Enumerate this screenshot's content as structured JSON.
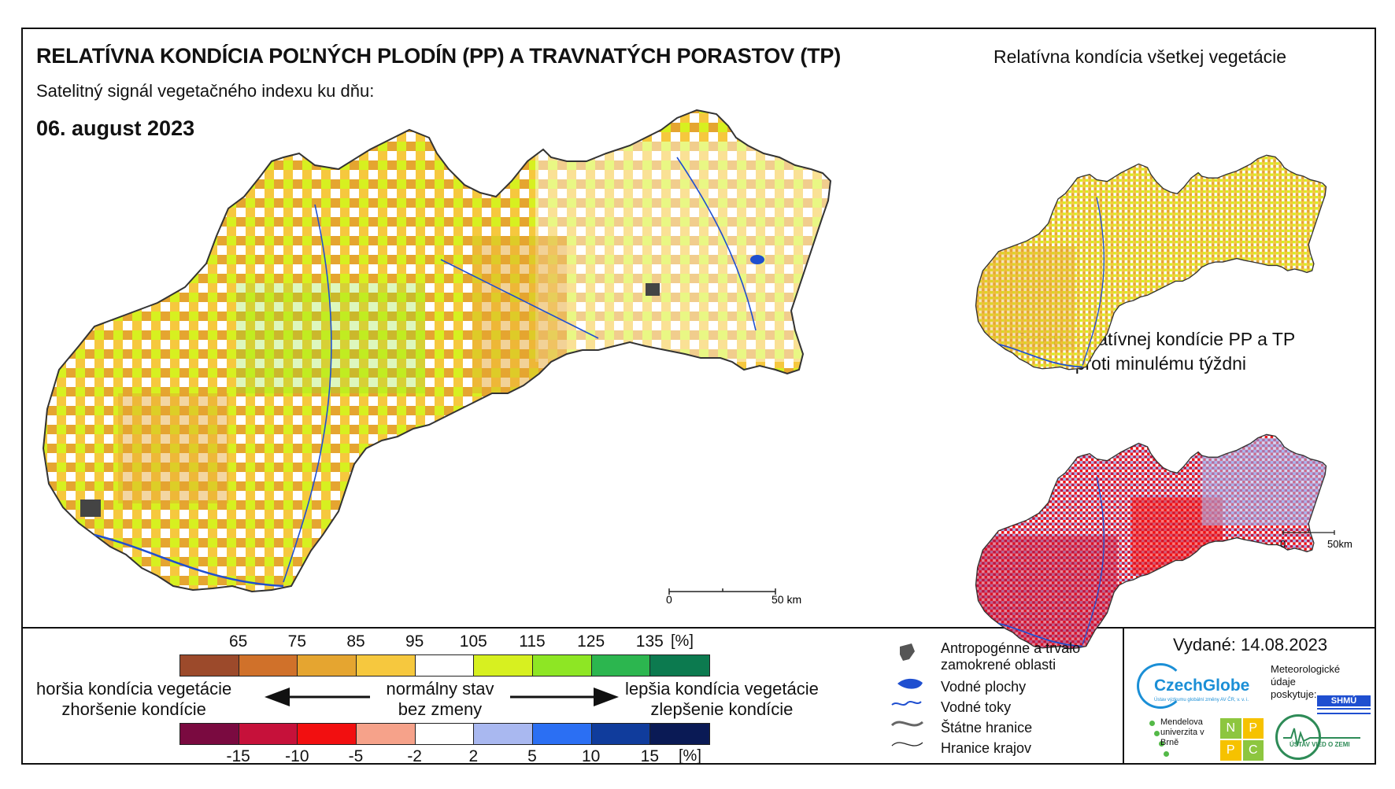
{
  "header": {
    "title": "RELATÍVNA KONDÍCIA POĽNÝCH PLODÍN (PP) A TRAVNATÝCH PORASTOV (TP)",
    "subtitle": "Satelitný signál vegetačného indexu ku dňu:",
    "date": "06. august 2023"
  },
  "side_maps": {
    "vegetation_title": "Relatívna kondícia všetkej vegetácie",
    "change_title": "Zmena relatívnej kondície PP a TP oproti minulému týždni",
    "scale_start": "0",
    "scale_end": "50km"
  },
  "main_map": {
    "scale_start": "0",
    "scale_end": "50 km"
  },
  "legend": {
    "condition_ticks": [
      "65",
      "75",
      "85",
      "95",
      "105",
      "115",
      "125",
      "135"
    ],
    "condition_unit": "[%]",
    "condition_colors": [
      "#9c4a2b",
      "#d0712a",
      "#e5a530",
      "#f6c83e",
      "#ffffff",
      "#d7f020",
      "#8ee624",
      "#2cb64f",
      "#0c7a4f"
    ],
    "change_ticks": [
      "-15",
      "-10",
      "-5",
      "-2",
      "2",
      "5",
      "10",
      "15"
    ],
    "change_unit": "[%]",
    "change_colors": [
      "#7a0a40",
      "#c6113a",
      "#f20f10",
      "#f6a28a",
      "#ffffff",
      "#a9b8f0",
      "#2b6ff3",
      "#103c9c",
      "#0a1a55"
    ],
    "worse_text_1": "horšia kondícia vegetácie",
    "worse_text_2": "zhoršenie kondície",
    "normal_text_1": "normálny stav",
    "normal_text_2": "bez zmeny",
    "better_text_1": "lepšia kondícia vegetácie",
    "better_text_2": "zlepšenie kondície"
  },
  "map_legend": {
    "anthropogenic": "Antropogénne a trvalo zamokrené oblasti",
    "water_bodies": "Vodné plochy",
    "water_streams": "Vodné toky",
    "state_border": "Štátne hranice",
    "region_border": "Hranice krajov"
  },
  "footer": {
    "issued": "Vydané: 14.08.2023",
    "czechglobe": "CzechGlobe",
    "czechglobe_sub": "Ústav výzkumu globální změny AV ČR, v. v. i.",
    "meteo_text": "Meteorologické údaje poskytuje:",
    "shmu": "SHMÚ",
    "mendelu": "Mendelova univerzita v Brně",
    "nppc": [
      "N",
      "P",
      "P",
      "C"
    ],
    "uvz": "ÚSTAV VIED O ZEMI"
  }
}
